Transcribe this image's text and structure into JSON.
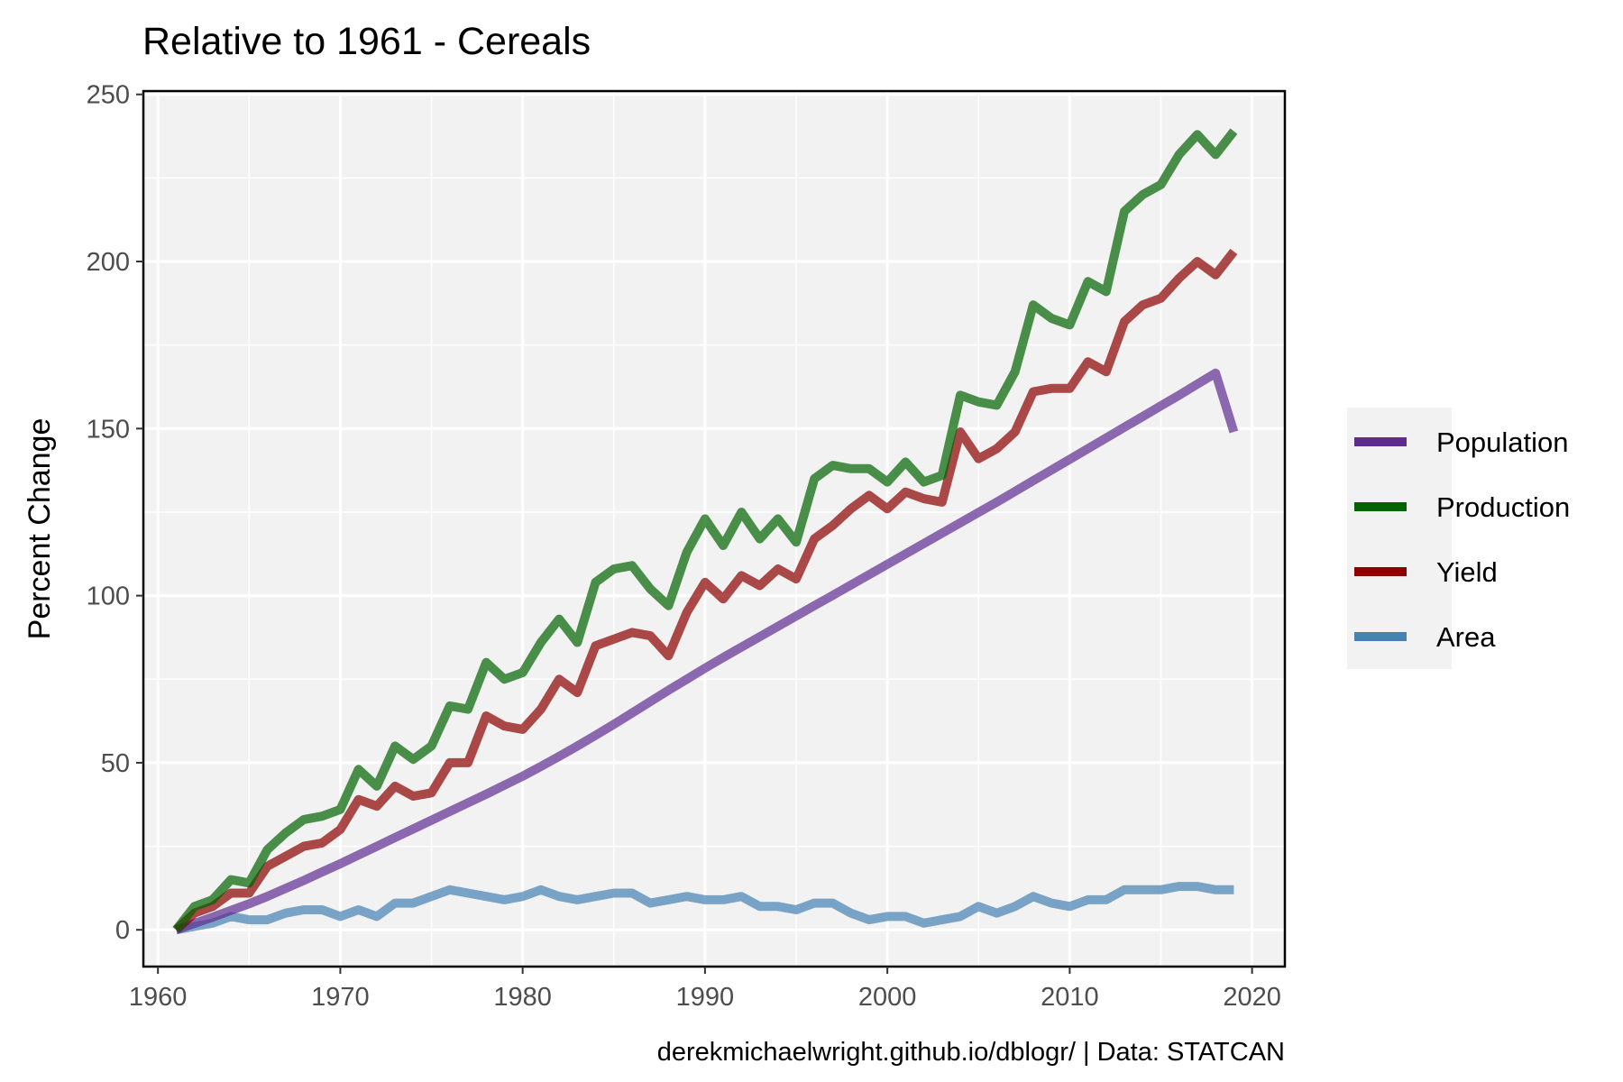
{
  "chart_data": {
    "type": "line",
    "title": "Relative to 1961 - Cereals",
    "caption": "derekmichaelwright.github.io/dblogr/ | Data: STATCAN",
    "xlabel": "",
    "ylabel": "Percent Change",
    "xlim": [
      1959.2,
      2021.8
    ],
    "ylim": [
      -11,
      251
    ],
    "x_ticks": [
      1960,
      1970,
      1980,
      1990,
      2000,
      2010,
      2020
    ],
    "y_ticks": [
      0,
      50,
      100,
      150,
      200,
      250
    ],
    "grid": true,
    "legend_position": "right",
    "x": [
      1961,
      1962,
      1963,
      1964,
      1965,
      1966,
      1967,
      1968,
      1969,
      1970,
      1971,
      1972,
      1973,
      1974,
      1975,
      1976,
      1977,
      1978,
      1979,
      1980,
      1981,
      1982,
      1983,
      1984,
      1985,
      1986,
      1987,
      1988,
      1989,
      1990,
      1991,
      1992,
      1993,
      1994,
      1995,
      1996,
      1997,
      1998,
      1999,
      2000,
      2001,
      2002,
      2003,
      2004,
      2005,
      2006,
      2007,
      2008,
      2009,
      2010,
      2011,
      2012,
      2013,
      2014,
      2015,
      2016,
      2017,
      2018,
      2019
    ],
    "series": [
      {
        "name": "Population",
        "color": "#5e2c91",
        "values": [
          0,
          1.9,
          3.8,
          5.8,
          7.8,
          10,
          12.4,
          14.8,
          17.3,
          19.8,
          22.4,
          25,
          27.6,
          30.2,
          32.8,
          35.4,
          38,
          40.6,
          43.3,
          46,
          48.9,
          51.9,
          55,
          58.2,
          61.5,
          64.9,
          68.3,
          71.7,
          75,
          78.3,
          81.5,
          84.6,
          87.7,
          90.8,
          93.9,
          97,
          100.1,
          103.2,
          106.3,
          109.4,
          112.5,
          115.6,
          118.7,
          121.8,
          124.9,
          128,
          131.2,
          134.4,
          137.6,
          140.8,
          144,
          147.2,
          150.4,
          153.6,
          156.8,
          160,
          163.3,
          166.6,
          149
        ]
      },
      {
        "name": "Production",
        "color": "#006400",
        "values": [
          0,
          7,
          9,
          15,
          14,
          24,
          29,
          33,
          34,
          36,
          48,
          43,
          55,
          51,
          55,
          67,
          66,
          80,
          75,
          77,
          86,
          93,
          86,
          104,
          108,
          109,
          102,
          97,
          113,
          123,
          115,
          125,
          117,
          123,
          116,
          135,
          139,
          138,
          138,
          134,
          140,
          134,
          136,
          160,
          158,
          157,
          167,
          187,
          183,
          181,
          194,
          191,
          215,
          220,
          223,
          232,
          238,
          232,
          239
        ]
      },
      {
        "name": "Yield",
        "color": "#8b0000",
        "values": [
          0,
          5,
          7,
          11,
          11,
          19,
          22,
          25,
          26,
          30,
          39,
          37,
          43,
          40,
          41,
          50,
          50,
          64,
          61,
          60,
          66,
          75,
          71,
          85,
          87,
          89,
          88,
          82,
          95,
          104,
          99,
          106,
          103,
          108,
          105,
          117,
          121,
          126,
          130,
          126,
          131,
          129,
          128,
          149,
          141,
          144,
          149,
          161,
          162,
          162,
          170,
          167,
          182,
          187,
          189,
          195,
          200,
          196,
          203
        ]
      },
      {
        "name": "Area",
        "color": "#4682b4",
        "values": [
          0,
          1,
          2,
          4,
          3,
          3,
          5,
          6,
          6,
          4,
          6,
          4,
          8,
          8,
          10,
          12,
          11,
          10,
          9,
          10,
          12,
          10,
          9,
          10,
          11,
          11,
          8,
          9,
          10,
          9,
          9,
          10,
          7,
          7,
          6,
          8,
          8,
          5,
          3,
          4,
          4,
          2,
          3,
          4,
          7,
          5,
          7,
          10,
          8,
          7,
          9,
          9,
          12,
          12,
          12,
          13,
          13,
          12,
          12
        ]
      }
    ],
    "legend_order": [
      "Population",
      "Production",
      "Yield",
      "Area"
    ]
  }
}
